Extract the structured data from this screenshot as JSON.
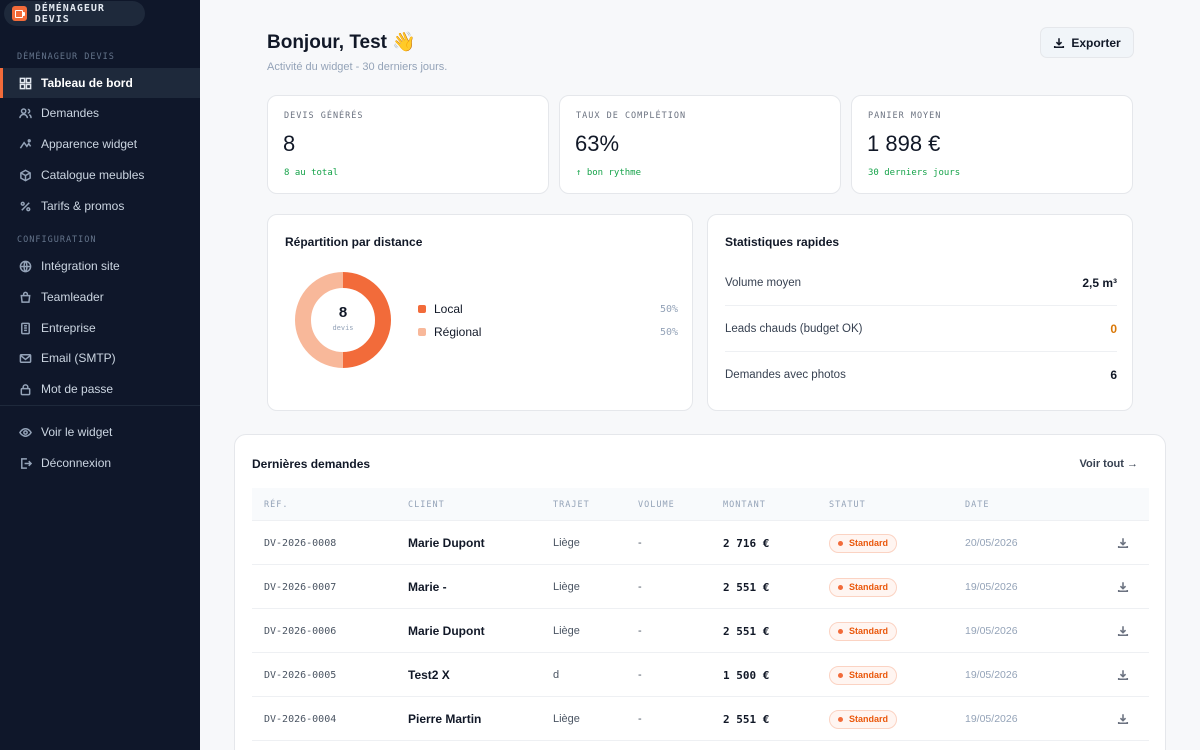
{
  "app": {
    "brand": "DÉMÉNAGEUR DEVIS",
    "accent": "#f26b3a"
  },
  "sidebar": {
    "section_main": "DÉMÉNAGEUR DEVIS",
    "main_items": [
      {
        "label": "Tableau de bord",
        "icon": "grid-icon",
        "active": true
      },
      {
        "label": "Demandes",
        "icon": "users-icon"
      },
      {
        "label": "Apparence widget",
        "icon": "sparkle-icon"
      },
      {
        "label": "Catalogue meubles",
        "icon": "cube-icon"
      },
      {
        "label": "Tarifs & promos",
        "icon": "percent-icon"
      }
    ],
    "section_config": "CONFIGURATION",
    "config_items": [
      {
        "label": "Intégration site",
        "icon": "globe-icon"
      },
      {
        "label": "Teamleader",
        "icon": "bag-icon"
      },
      {
        "label": "Entreprise",
        "icon": "building-icon"
      },
      {
        "label": "Email (SMTP)",
        "icon": "mail-icon"
      },
      {
        "label": "Mot de passe",
        "icon": "lock-icon"
      }
    ],
    "bottom_items": [
      {
        "label": "Voir le widget",
        "icon": "eye-icon"
      },
      {
        "label": "Déconnexion",
        "icon": "logout-icon"
      }
    ]
  },
  "header": {
    "greeting": "Bonjour, Test 👋",
    "subtitle": "Activité du widget - 30 derniers jours.",
    "export_label": "Exporter"
  },
  "kpis": [
    {
      "label": "DEVIS GÉNÉRÉS",
      "value": "8",
      "sub": "8 au total"
    },
    {
      "label": "TAUX DE COMPLÉTION",
      "value": "63%",
      "sub": "↑ bon rythme"
    },
    {
      "label": "PANIER MOYEN",
      "value": "1 898 €",
      "sub": "30 derniers jours"
    }
  ],
  "distance": {
    "title": "Répartition par distance",
    "center_value": "8",
    "center_caption": "devis",
    "chart_data": {
      "type": "pie",
      "categories": [
        "Local",
        "Régional"
      ],
      "values": [
        50,
        50
      ],
      "labels": [
        "50%",
        "50%"
      ],
      "colors": [
        "#f26b3a",
        "#f8b89a"
      ]
    }
  },
  "quick_stats": {
    "title": "Statistiques rapides",
    "rows": [
      {
        "label": "Volume moyen",
        "value": "2,5 m³",
        "color": "#111827"
      },
      {
        "label": "Leads chauds (budget OK)",
        "value": "0",
        "color": "#d97706"
      },
      {
        "label": "Demandes avec photos",
        "value": "6",
        "color": "#111827"
      }
    ]
  },
  "latest": {
    "title": "Dernières demandes",
    "see_all": "Voir tout →",
    "columns": [
      "RÉF.",
      "CLIENT",
      "TRAJET",
      "VOLUME",
      "MONTANT",
      "STATUT",
      "DATE"
    ],
    "rows": [
      {
        "ref": "DV-2026-0008",
        "client": "Marie Dupont",
        "route": "Liège",
        "volume": "-",
        "amount": "2 716 €",
        "status": "Standard",
        "date": "20/05/2026"
      },
      {
        "ref": "DV-2026-0007",
        "client": "Marie -",
        "route": "Liège",
        "volume": "-",
        "amount": "2 551 €",
        "status": "Standard",
        "date": "19/05/2026"
      },
      {
        "ref": "DV-2026-0006",
        "client": "Marie Dupont",
        "route": "Liège",
        "volume": "-",
        "amount": "2 551 €",
        "status": "Standard",
        "date": "19/05/2026"
      },
      {
        "ref": "DV-2026-0005",
        "client": "Test2 X",
        "route": "d",
        "volume": "-",
        "amount": "1 500 €",
        "status": "Standard",
        "date": "19/05/2026"
      },
      {
        "ref": "DV-2026-0004",
        "client": "Pierre Martin",
        "route": "Liège",
        "volume": "-",
        "amount": "2 551 €",
        "status": "Standard",
        "date": "19/05/2026"
      }
    ]
  }
}
